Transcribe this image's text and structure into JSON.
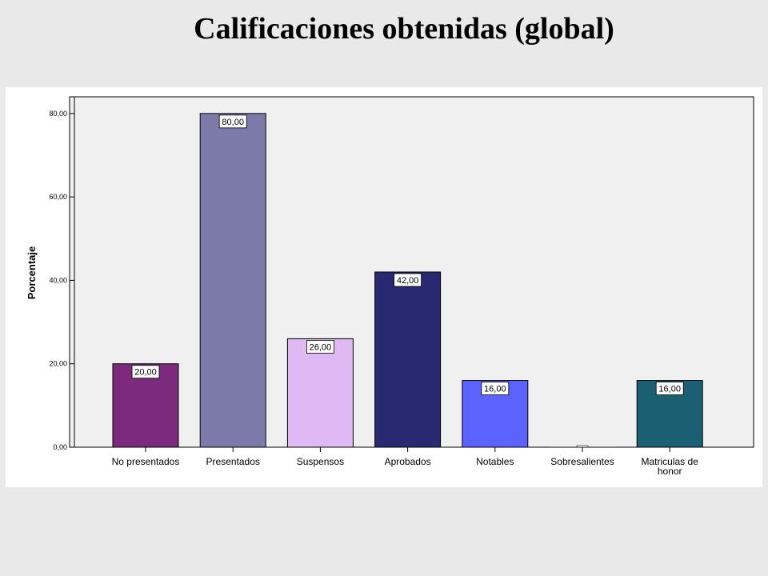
{
  "chart_data": {
    "type": "bar",
    "title": "Calificaciones obtenidas (global)",
    "ylabel": "Porcentaje",
    "xlabel": "",
    "ylim": [
      0,
      84
    ],
    "yticks": [
      0,
      20,
      40,
      60,
      80
    ],
    "ytick_labels": [
      "0,00",
      "20,00",
      "40,00",
      "60,00",
      "80,00"
    ],
    "grid": false,
    "categories": [
      [
        "No presentados"
      ],
      [
        "Presentados"
      ],
      [
        "Suspensos"
      ],
      [
        "Aprobados"
      ],
      [
        "Notables"
      ],
      [
        "Sobresalientes"
      ],
      [
        "Matriculas de",
        "honor"
      ]
    ],
    "values": [
      20,
      80,
      26,
      42,
      16,
      0,
      16
    ],
    "value_labels": [
      "20,00",
      "80,00",
      "26,00",
      "42,00",
      "16,00",
      "",
      "16,00"
    ],
    "colors": [
      "#7b2a7c",
      "#7b7aa8",
      "#dfbaf2",
      "#282970",
      "#5b62fe",
      "#ffffff",
      "#1b5f73"
    ]
  }
}
